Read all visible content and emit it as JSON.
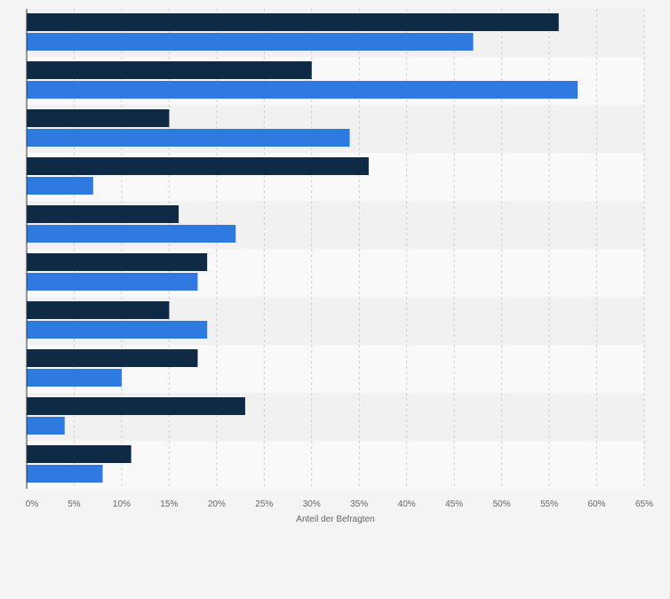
{
  "chart_data": {
    "type": "bar",
    "orientation": "horizontal",
    "categories": [
      "",
      "",
      "",
      "",
      "",
      "",
      "",
      "",
      "",
      ""
    ],
    "series": [
      {
        "color": "#0f2a44",
        "values": [
          56,
          30,
          15,
          36,
          16,
          19,
          15,
          18,
          23,
          11
        ]
      },
      {
        "color": "#2f7ae0",
        "values": [
          47,
          58,
          34,
          7,
          22,
          18,
          19,
          10,
          4,
          8
        ]
      }
    ],
    "xlim": [
      0,
      65
    ],
    "xticks": [
      0,
      5,
      10,
      15,
      20,
      25,
      30,
      35,
      40,
      45,
      50,
      55,
      60,
      65
    ],
    "xtick_labels": [
      "0%",
      "5%",
      "10%",
      "15%",
      "20%",
      "25%",
      "30%",
      "35%",
      "40%",
      "45%",
      "50%",
      "55%",
      "60%",
      "65%"
    ],
    "xlabel": "Anteil der Befragten",
    "grid": true,
    "legend": "none"
  }
}
